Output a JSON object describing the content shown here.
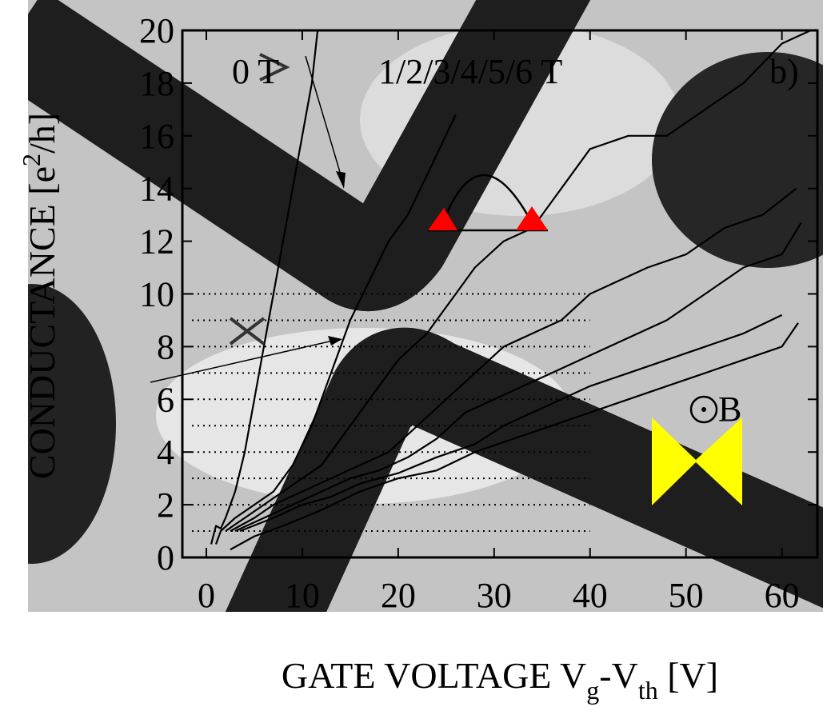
{
  "chart_data": {
    "type": "line",
    "x_label": [
      "GATE VOLTAGE V",
      "g",
      "-V",
      "th",
      " [V]"
    ],
    "y_label": [
      "CONDUCTANCE [e",
      "2",
      "/h]"
    ],
    "annotations": [
      "0 T",
      "1/2/3/4/5/6 T",
      "b)",
      "B"
    ],
    "xlim": [
      -2.5,
      63.7
    ],
    "ylim": [
      0,
      20
    ],
    "xticks": [
      0,
      10,
      20,
      30,
      40,
      50,
      60
    ],
    "yticks": [
      0,
      2,
      4,
      6,
      8,
      10,
      12,
      14,
      16,
      18,
      20
    ],
    "hlines": [
      1,
      2,
      3,
      4,
      5,
      6,
      7,
      8,
      9,
      10
    ],
    "hline_end": 40,
    "color": "#000000",
    "series": [
      {
        "x": [
          0.5,
          1,
          1.5,
          2,
          3,
          4,
          5,
          6,
          7,
          8,
          9,
          10,
          11,
          11.6
        ],
        "values": [
          0.5,
          1.2,
          1.1,
          1.5,
          2.5,
          4,
          6,
          8,
          10,
          12,
          14,
          16,
          18,
          20
        ]
      },
      {
        "x": [
          1,
          1.5,
          3,
          5,
          7,
          9,
          11,
          13,
          15,
          17,
          19,
          21,
          23,
          26
        ],
        "values": [
          0.5,
          1,
          1.5,
          2,
          2.5,
          3.5,
          5,
          7,
          9,
          10.5,
          12,
          13,
          14.5,
          16.8
        ]
      },
      {
        "x": [
          2,
          4,
          6,
          8,
          10,
          12,
          14,
          16,
          18,
          20,
          23,
          26,
          28,
          31,
          34,
          37,
          40,
          44,
          48,
          52,
          56,
          60,
          63
        ],
        "values": [
          1,
          1.5,
          2,
          2.5,
          3,
          3.5,
          4.5,
          5.5,
          6.5,
          7.5,
          8.5,
          10,
          11,
          12,
          12.5,
          14,
          15.5,
          16,
          16,
          17,
          18,
          19.5,
          20
        ]
      },
      {
        "x": [
          2.5,
          5,
          7,
          10,
          13,
          16,
          19,
          22,
          25,
          28,
          31,
          34,
          37,
          40,
          43,
          46,
          50,
          54,
          58,
          61.5
        ],
        "values": [
          1,
          1.5,
          2,
          2.5,
          3,
          3.5,
          4,
          5,
          6,
          7,
          8,
          8.5,
          9,
          10,
          10.5,
          11,
          11.5,
          12.5,
          13,
          14
        ]
      },
      {
        "x": [
          3,
          6,
          9,
          12,
          15,
          18,
          21,
          24,
          27,
          30,
          33,
          36,
          39,
          42,
          45,
          48,
          52,
          56,
          60,
          62
        ],
        "values": [
          1,
          1.5,
          2,
          2.5,
          3,
          3.3,
          3.8,
          4.5,
          5.5,
          6,
          6.5,
          7,
          7.5,
          8,
          8.5,
          9,
          10,
          11,
          11.5,
          12.7
        ]
      },
      {
        "x": [
          3.5,
          7,
          10,
          13,
          16,
          20,
          24,
          28,
          31,
          34,
          37,
          40,
          44,
          48,
          52,
          56,
          60
        ],
        "values": [
          1,
          1.5,
          2,
          2.3,
          2.8,
          3.2,
          3.8,
          4.3,
          5,
          5.5,
          6,
          6.5,
          7,
          7.5,
          8,
          8.5,
          9.2
        ]
      },
      {
        "x": [
          2.5,
          5,
          8,
          12,
          16,
          20,
          24,
          28,
          32,
          36,
          40,
          44,
          48,
          52,
          56,
          60,
          61.7
        ],
        "values": [
          0.3,
          0.8,
          1.2,
          1.8,
          2.5,
          3,
          3.3,
          4,
          4.5,
          5,
          5.5,
          6,
          6.5,
          7,
          7.5,
          8,
          8.9
        ]
      }
    ]
  }
}
